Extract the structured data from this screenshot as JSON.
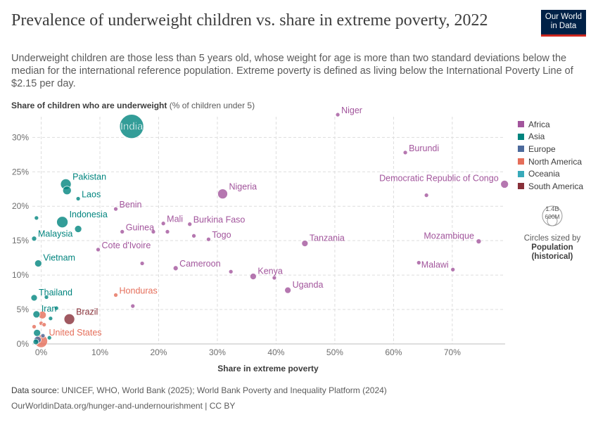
{
  "header": {
    "title": "Prevalence of underweight children vs. share in extreme poverty, 2022",
    "subtitle": "Underweight children are those less than 5 years old, whose weight for age is more than two standard deviations below the median for the international reference population. Extreme poverty is defined as living below the International Poverty Line of $2.15 per day.",
    "logo_line1": "Our World",
    "logo_line2": "in Data"
  },
  "yaxis_title_bold": "Share of children who are underweight",
  "yaxis_title_rest": " (% of children under 5)",
  "legend": {
    "items": [
      {
        "label": "Africa",
        "color": "#a2559c"
      },
      {
        "label": "Asia",
        "color": "#00847e"
      },
      {
        "label": "Europe",
        "color": "#4c6a9c"
      },
      {
        "label": "North America",
        "color": "#e56e5a"
      },
      {
        "label": "Oceania",
        "color": "#38aaba"
      },
      {
        "label": "South America",
        "color": "#883039"
      }
    ],
    "size_value_max": "1.4B",
    "size_value_min": "600M",
    "size_caption": "Circles sized by",
    "size_caption_bold1": "Population",
    "size_caption_bold2": "(historical)"
  },
  "chart_data": {
    "type": "scatter",
    "xlabel": "Share in extreme poverty",
    "xlim": [
      -1.5,
      79
    ],
    "ylim": [
      0,
      33
    ],
    "xticks": [
      "0%",
      "10%",
      "20%",
      "30%",
      "40%",
      "50%",
      "60%",
      "70%"
    ],
    "yticks": [
      "0%",
      "5%",
      "10%",
      "15%",
      "20%",
      "25%",
      "30%"
    ],
    "grid": true,
    "points": [
      {
        "label": "India",
        "x": 15.4,
        "y": 31.6,
        "region": "Asia",
        "r": 17
      },
      {
        "label": "Niger",
        "x": 50.5,
        "y": 33.3,
        "region": "Africa",
        "r": 3
      },
      {
        "label": "Burundi",
        "x": 62.0,
        "y": 27.8,
        "region": "Africa",
        "r": 3
      },
      {
        "label": "Democratic Republic of Congo",
        "x": 78.9,
        "y": 23.2,
        "region": "Africa",
        "r": 5.5
      },
      {
        "label": "Pakistan",
        "x": 4.2,
        "y": 23.2,
        "region": "Asia",
        "r": 7.5
      },
      {
        "label": "",
        "x": 4.4,
        "y": 22.3,
        "region": "Asia",
        "r": 6
      },
      {
        "label": "Nigeria",
        "x": 30.9,
        "y": 21.8,
        "region": "Africa",
        "r": 7
      },
      {
        "label": "",
        "x": 65.6,
        "y": 21.6,
        "region": "Africa",
        "r": 3
      },
      {
        "label": "Laos",
        "x": 6.3,
        "y": 21.1,
        "region": "Asia",
        "r": 3
      },
      {
        "label": "Benin",
        "x": 12.7,
        "y": 19.6,
        "region": "Africa",
        "r": 3
      },
      {
        "label": "",
        "x": -0.8,
        "y": 18.3,
        "region": "Asia",
        "r": 3
      },
      {
        "label": "Indonesia",
        "x": 3.6,
        "y": 17.7,
        "region": "Asia",
        "r": 8
      },
      {
        "label": "Mali",
        "x": 20.8,
        "y": 17.5,
        "region": "Africa",
        "r": 3
      },
      {
        "label": "Burkina Faso",
        "x": 25.3,
        "y": 17.4,
        "region": "Africa",
        "r": 3
      },
      {
        "label": "",
        "x": 6.3,
        "y": 16.7,
        "region": "Asia",
        "r": 5
      },
      {
        "label": "Guinea",
        "x": 13.8,
        "y": 16.3,
        "region": "Africa",
        "r": 3
      },
      {
        "label": "",
        "x": 19.1,
        "y": 16.3,
        "region": "Africa",
        "r": 3
      },
      {
        "label": "",
        "x": 21.5,
        "y": 16.3,
        "region": "Africa",
        "r": 3
      },
      {
        "label": "Togo",
        "x": 28.5,
        "y": 15.2,
        "region": "Africa",
        "r": 3
      },
      {
        "label": "",
        "x": 26.0,
        "y": 15.7,
        "region": "Africa",
        "r": 3
      },
      {
        "label": "Malaysia",
        "x": -1.2,
        "y": 15.3,
        "region": "Asia",
        "r": 3.5
      },
      {
        "label": "Tanzania",
        "x": 44.9,
        "y": 14.6,
        "region": "Africa",
        "r": 4.5
      },
      {
        "label": "Mozambique",
        "x": 74.5,
        "y": 14.9,
        "region": "Africa",
        "r": 3.5
      },
      {
        "label": "Cote d'Ivoire",
        "x": 9.7,
        "y": 13.7,
        "region": "Africa",
        "r": 3
      },
      {
        "label": "Vietnam",
        "x": -0.5,
        "y": 11.7,
        "region": "Asia",
        "r": 5
      },
      {
        "label": "",
        "x": 17.2,
        "y": 11.7,
        "region": "Africa",
        "r": 3
      },
      {
        "label": "",
        "x": 64.3,
        "y": 11.8,
        "region": "Africa",
        "r": 3
      },
      {
        "label": "Cameroon",
        "x": 22.9,
        "y": 11.0,
        "region": "Africa",
        "r": 3.5
      },
      {
        "label": "Malawi",
        "x": 70.1,
        "y": 10.8,
        "region": "Africa",
        "r": 3
      },
      {
        "label": "",
        "x": 32.3,
        "y": 10.5,
        "region": "Africa",
        "r": 3
      },
      {
        "label": "Kenya",
        "x": 36.1,
        "y": 9.8,
        "region": "Africa",
        "r": 4.5
      },
      {
        "label": "",
        "x": 39.7,
        "y": 9.6,
        "region": "Africa",
        "r": 3
      },
      {
        "label": "Uganda",
        "x": 42.0,
        "y": 7.8,
        "region": "Africa",
        "r": 4.5
      },
      {
        "label": "Honduras",
        "x": 12.7,
        "y": 7.1,
        "region": "North America",
        "r": 3
      },
      {
        "label": "Thailand",
        "x": -1.2,
        "y": 6.7,
        "region": "Asia",
        "r": 4.5
      },
      {
        "label": "",
        "x": 0.9,
        "y": 6.8,
        "region": "Asia",
        "r": 3
      },
      {
        "label": "",
        "x": 15.6,
        "y": 5.5,
        "region": "Africa",
        "r": 3
      },
      {
        "label": "Iran",
        "x": -0.8,
        "y": 4.3,
        "region": "Asia",
        "r": 5
      },
      {
        "label": "",
        "x": 2.6,
        "y": 5.2,
        "region": "Asia",
        "r": 3
      },
      {
        "label": "",
        "x": 0.2,
        "y": 4.2,
        "region": "North America",
        "r": 5.5
      },
      {
        "label": "Brazil",
        "x": 4.8,
        "y": 3.6,
        "region": "South America",
        "r": 7.5
      },
      {
        "label": "",
        "x": 1.6,
        "y": 3.7,
        "region": "Asia",
        "r": 3
      },
      {
        "label": "",
        "x": 0.0,
        "y": 3.0,
        "region": "North America",
        "r": 3
      },
      {
        "label": "",
        "x": 0.5,
        "y": 2.8,
        "region": "North America",
        "r": 3
      },
      {
        "label": "",
        "x": -1.2,
        "y": 2.5,
        "region": "North America",
        "r": 3
      },
      {
        "label": "",
        "x": -0.7,
        "y": 1.6,
        "region": "Asia",
        "r": 5
      },
      {
        "label": "",
        "x": 0.3,
        "y": 1.2,
        "region": "Europe",
        "r": 3
      },
      {
        "label": "",
        "x": 1.4,
        "y": 0.9,
        "region": "Asia",
        "r": 3
      },
      {
        "label": "",
        "x": -0.6,
        "y": 0.6,
        "region": "Europe",
        "r": 5
      },
      {
        "label": "",
        "x": -0.9,
        "y": 0.3,
        "region": "Asia",
        "r": 4
      },
      {
        "label": "United States",
        "x": 0.0,
        "y": 0.4,
        "region": "North America",
        "r": 9
      }
    ]
  },
  "footer": {
    "source_bold": "Data source:",
    "source_text": " UNICEF, WHO, World Bank (2025); World Bank Poverty and Inequality Platform (2024)",
    "url": "OurWorldinData.org/hunger-and-undernourishment | CC BY"
  }
}
